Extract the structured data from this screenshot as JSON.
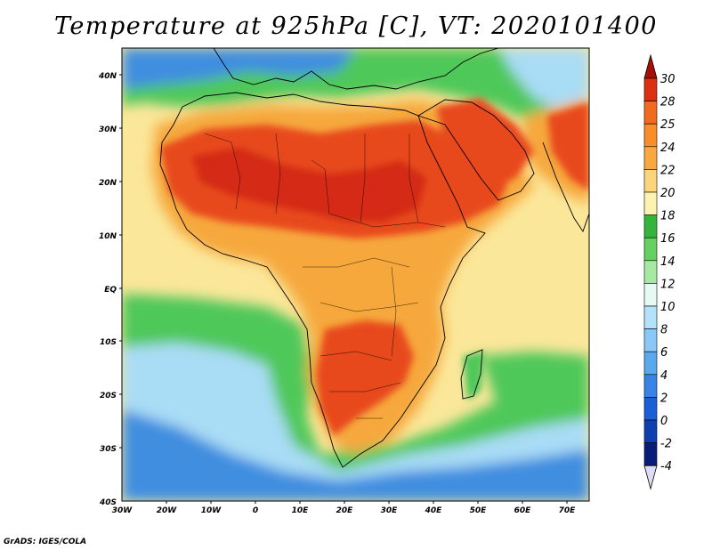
{
  "title": "Temperature at 925hPa [C], VT: 2020101400",
  "credit": "GrADS: IGES/COLA",
  "map": {
    "lat_labels": [
      "40N",
      "30N",
      "20N",
      "10N",
      "EQ",
      "10S",
      "20S",
      "30S",
      "40S"
    ],
    "lon_labels": [
      "30W",
      "20W",
      "10W",
      "0",
      "10E",
      "20E",
      "30E",
      "40E",
      "50E",
      "60E",
      "70E"
    ],
    "colors": {
      "ocean_cool": "#3f8ee0",
      "ocean_mild": "#a9dcf5",
      "sea_green": "#50c85a",
      "land_hot": "#e84a1a",
      "land_very_hot": "#d42a12",
      "land_warm": "#f6a83d",
      "ocean_warm": "#fbe79a",
      "coast_line": "#000000"
    }
  },
  "colorbar": {
    "labels": [
      "30",
      "28",
      "25",
      "24",
      "22",
      "20",
      "18",
      "16",
      "14",
      "12",
      "10",
      "8",
      "6",
      "4",
      "2",
      "0",
      "-2",
      "-4"
    ],
    "colors": [
      "#a50f06",
      "#dc3010",
      "#f06a20",
      "#f88d2a",
      "#f8a83e",
      "#fbd57a",
      "#fdf3b0",
      "#34b43c",
      "#66d061",
      "#a6e9a2",
      "#e6f9f3",
      "#b3e2fa",
      "#8cc8f5",
      "#5aa8ee",
      "#3584e6",
      "#1a5fd6",
      "#0e3fb0",
      "#081c7a",
      "#dcdcf5"
    ]
  }
}
